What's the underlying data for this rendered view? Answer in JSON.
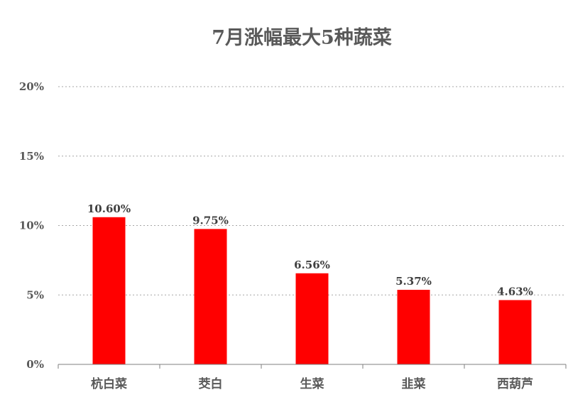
{
  "chart_data": {
    "type": "bar",
    "title": "7月涨幅最大5种蔬菜",
    "categories": [
      "杭白菜",
      "茭白",
      "生菜",
      "韭菜",
      "西葫芦"
    ],
    "values": [
      10.6,
      9.75,
      6.56,
      5.37,
      4.63
    ],
    "data_labels": [
      "10.60%",
      "9.75%",
      "6.56%",
      "5.37%",
      "4.63%"
    ],
    "y_ticks": [
      0,
      5,
      10,
      15,
      20
    ],
    "y_tick_labels": [
      "0%",
      "5%",
      "10%",
      "15%",
      "20%"
    ],
    "ylim": [
      0,
      20
    ],
    "xlabel": "",
    "ylabel": "",
    "grid": true,
    "legend": "none",
    "bar_color": "#ff0000"
  }
}
